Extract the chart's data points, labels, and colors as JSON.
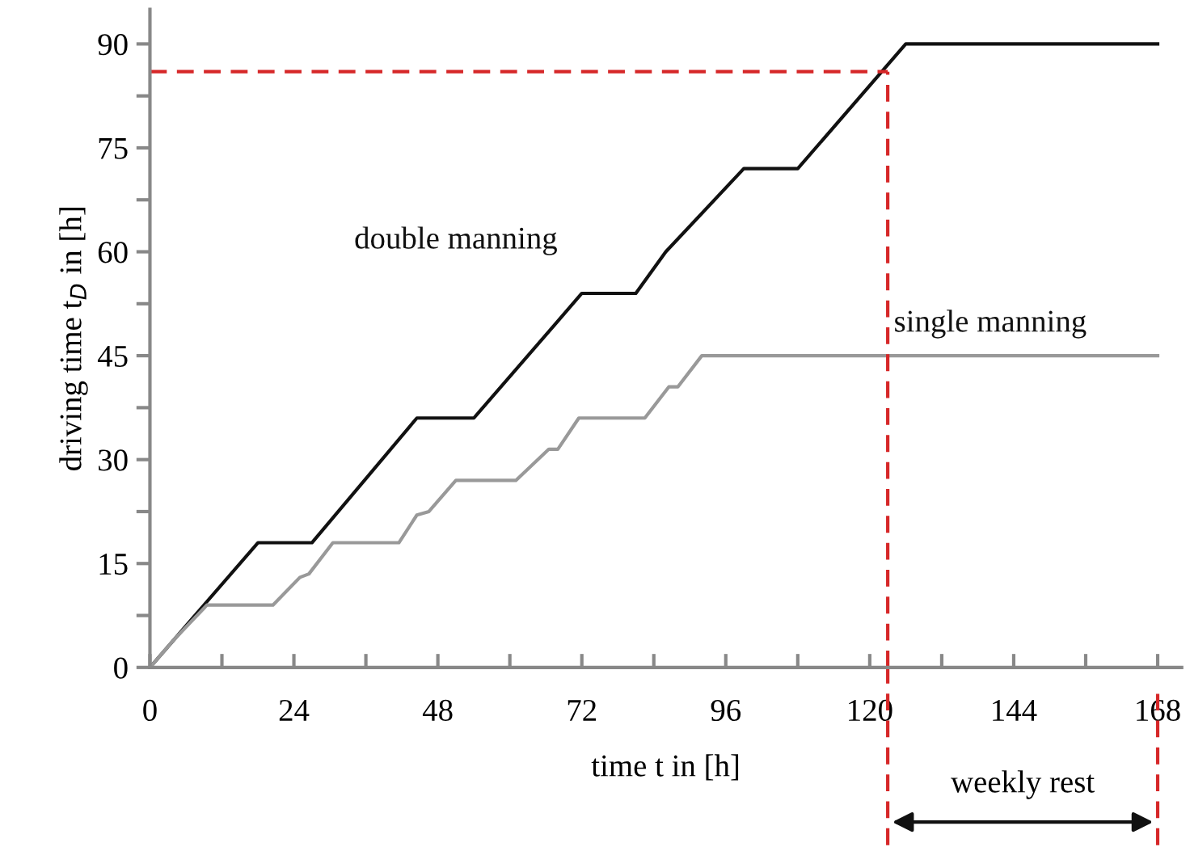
{
  "chart_data": {
    "type": "line",
    "xlabel": "time t in [h]",
    "ylabel": "driving time t$_{D}$ in [h]",
    "xlim": [
      0,
      172
    ],
    "ylim": [
      0,
      95
    ],
    "xticks": [
      0,
      {
        "value": 12,
        "label": null
      },
      24,
      {
        "value": 36,
        "label": null
      },
      48,
      {
        "value": 60,
        "label": null
      },
      72,
      {
        "value": 84,
        "label": null
      },
      96,
      {
        "value": 108,
        "label": null
      },
      120,
      {
        "value": 132,
        "label": null
      },
      144,
      {
        "value": 156,
        "label": null
      },
      168
    ],
    "yticks": [
      0,
      {
        "value": 7.5,
        "label": null
      },
      15,
      {
        "value": 22.5,
        "label": null
      },
      30,
      {
        "value": 37.5,
        "label": null
      },
      45,
      {
        "value": 52.5,
        "label": null
      },
      60,
      {
        "value": 67.5,
        "label": null
      },
      75,
      {
        "value": 82.5,
        "label": null
      },
      90
    ],
    "grid": false,
    "marker": "none",
    "line_style": "solid",
    "series": [
      {
        "name": "double manning",
        "color": "#111111",
        "x": [
          0,
          4,
          18,
          27,
          44.5,
          54,
          67.5,
          72,
          81,
          86,
          99,
          108,
          126,
          168
        ],
        "values": [
          0,
          4,
          18,
          18,
          36,
          36,
          49.5,
          54,
          54,
          60,
          72,
          72,
          90,
          90
        ]
      },
      {
        "name": "single manning",
        "color": "#999999",
        "x": [
          0,
          4,
          9.5,
          20.5,
          25,
          26.5,
          30.5,
          41.5,
          44.5,
          46.5,
          51,
          61,
          66.5,
          68,
          71.5,
          82.5,
          86.5,
          88,
          92,
          168
        ],
        "values": [
          0,
          4,
          9,
          9,
          13,
          13.5,
          18,
          18,
          22,
          22.5,
          27,
          27,
          31.5,
          31.5,
          36,
          36,
          40.5,
          40.5,
          45,
          45
        ]
      }
    ],
    "ref_lines": [
      {
        "axis": "x",
        "value": 123,
        "color": "#d62728",
        "line_style": "dashed"
      },
      {
        "axis": "y",
        "value": 86,
        "color": "#d62728",
        "line_style": "dashed"
      }
    ],
    "annotations": [
      "weekly rest"
    ]
  }
}
